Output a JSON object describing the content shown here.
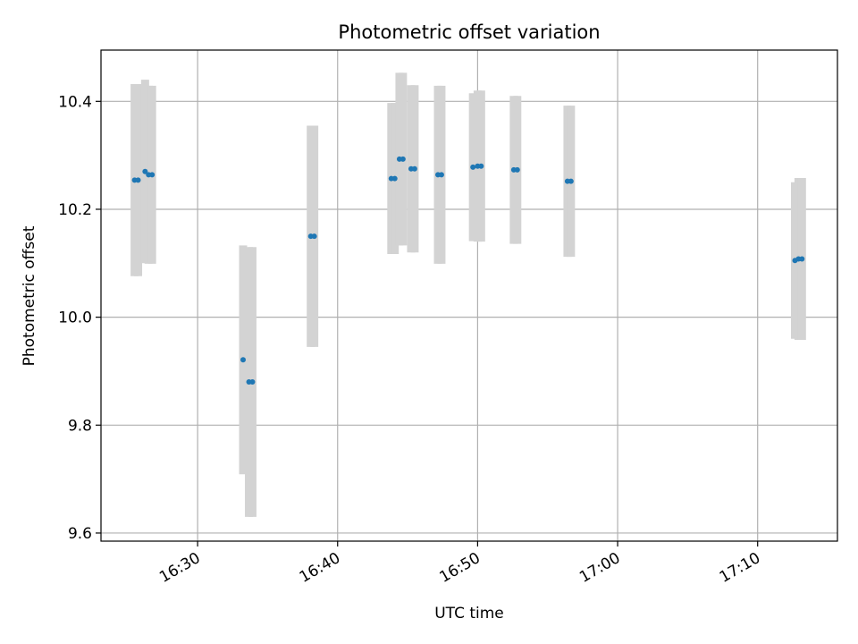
{
  "chart_data": {
    "type": "scatter",
    "title": "Photometric offset variation",
    "xlabel": "UTC time",
    "ylabel": "Photometric offset",
    "grid": true,
    "x_range_minutes": [
      23.1,
      75.7
    ],
    "ylim": [
      9.585,
      10.495
    ],
    "x_ticks": [
      {
        "minute": 30,
        "label": "16:30"
      },
      {
        "minute": 40,
        "label": "16:40"
      },
      {
        "minute": 50,
        "label": "16:50"
      },
      {
        "minute": 60,
        "label": "17:00"
      },
      {
        "minute": 70,
        "label": "17:10"
      }
    ],
    "y_ticks": [
      {
        "value": 9.6,
        "label": "9.6"
      },
      {
        "value": 9.8,
        "label": "9.8"
      },
      {
        "value": 10.0,
        "label": "10.0"
      },
      {
        "value": 10.2,
        "label": "10.2"
      },
      {
        "value": 10.4,
        "label": "10.4"
      }
    ],
    "series": [
      {
        "name": "",
        "color": "#1f77b4",
        "error_color": "#d3d3d3",
        "points": [
          {
            "t": "16:25:30",
            "y": 10.254,
            "err": 0.178
          },
          {
            "t": "16:25:45",
            "y": 10.254,
            "err": 0.178
          },
          {
            "t": "16:26:15",
            "y": 10.27,
            "err": 0.17
          },
          {
            "t": "16:26:30",
            "y": 10.264,
            "err": 0.165
          },
          {
            "t": "16:26:45",
            "y": 10.264,
            "err": 0.165
          },
          {
            "t": "16:33:15",
            "y": 9.921,
            "err": 0.212
          },
          {
            "t": "16:33:40",
            "y": 9.88,
            "err": 0.25
          },
          {
            "t": "16:33:55",
            "y": 9.88,
            "err": 0.25
          },
          {
            "t": "16:38:05",
            "y": 10.15,
            "err": 0.205
          },
          {
            "t": "16:38:20",
            "y": 10.15,
            "err": 0.205
          },
          {
            "t": "16:43:50",
            "y": 10.257,
            "err": 0.14
          },
          {
            "t": "16:44:05",
            "y": 10.257,
            "err": 0.14
          },
          {
            "t": "16:44:25",
            "y": 10.293,
            "err": 0.16
          },
          {
            "t": "16:44:40",
            "y": 10.293,
            "err": 0.16
          },
          {
            "t": "16:45:15",
            "y": 10.275,
            "err": 0.155
          },
          {
            "t": "16:45:30",
            "y": 10.275,
            "err": 0.155
          },
          {
            "t": "16:47:10",
            "y": 10.264,
            "err": 0.165
          },
          {
            "t": "16:47:25",
            "y": 10.264,
            "err": 0.165
          },
          {
            "t": "16:49:40",
            "y": 10.278,
            "err": 0.137
          },
          {
            "t": "16:50:00",
            "y": 10.28,
            "err": 0.14
          },
          {
            "t": "16:50:15",
            "y": 10.28,
            "err": 0.14
          },
          {
            "t": "16:52:35",
            "y": 10.273,
            "err": 0.137
          },
          {
            "t": "16:52:50",
            "y": 10.273,
            "err": 0.137
          },
          {
            "t": "16:56:25",
            "y": 10.252,
            "err": 0.14
          },
          {
            "t": "16:56:40",
            "y": 10.252,
            "err": 0.14
          },
          {
            "t": "17:12:40",
            "y": 10.105,
            "err": 0.145
          },
          {
            "t": "17:12:55",
            "y": 10.108,
            "err": 0.15
          },
          {
            "t": "17:13:10",
            "y": 10.108,
            "err": 0.15
          }
        ]
      }
    ]
  }
}
